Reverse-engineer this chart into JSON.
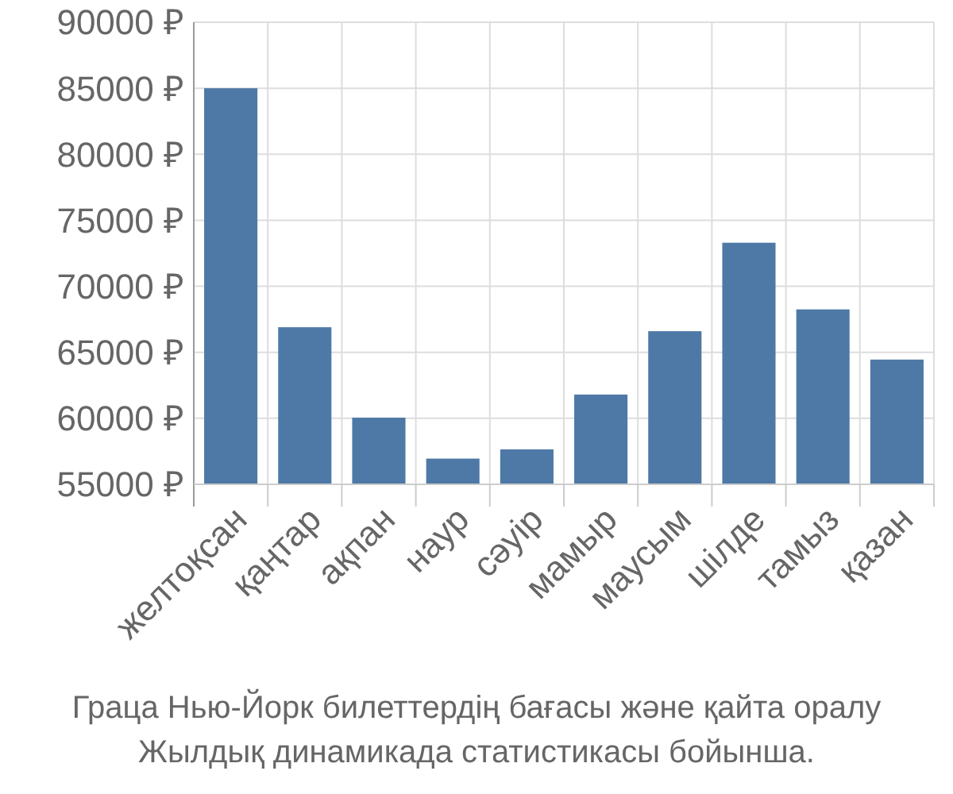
{
  "chart_data": {
    "type": "bar",
    "categories": [
      "желтоқсан",
      "қаңтар",
      "ақпан",
      "наур",
      "сәуір",
      "мамыр",
      "маусым",
      "шілде",
      "тамыз",
      "қазан"
    ],
    "values": [
      85000,
      66900,
      60050,
      56950,
      57650,
      61800,
      66600,
      73300,
      68250,
      64450
    ],
    "color": "#4e79a7",
    "ylim": [
      55000,
      90000
    ],
    "yticks": [
      {
        "value": 55000,
        "label": "55000 ₽"
      },
      {
        "value": 60000,
        "label": "60000 ₽"
      },
      {
        "value": 65000,
        "label": "65000 ₽"
      },
      {
        "value": 70000,
        "label": "70000 ₽"
      },
      {
        "value": 75000,
        "label": "75000 ₽"
      },
      {
        "value": 80000,
        "label": "80000 ₽"
      },
      {
        "value": 85000,
        "label": "85000 ₽"
      },
      {
        "value": 90000,
        "label": "90000 ₽"
      }
    ],
    "grid": true,
    "annotations": [
      "Граца Нью-Йорк билеттердің бағасы және қайта оралу",
      "Жылдық динамикада статистикасы бойынша."
    ]
  }
}
